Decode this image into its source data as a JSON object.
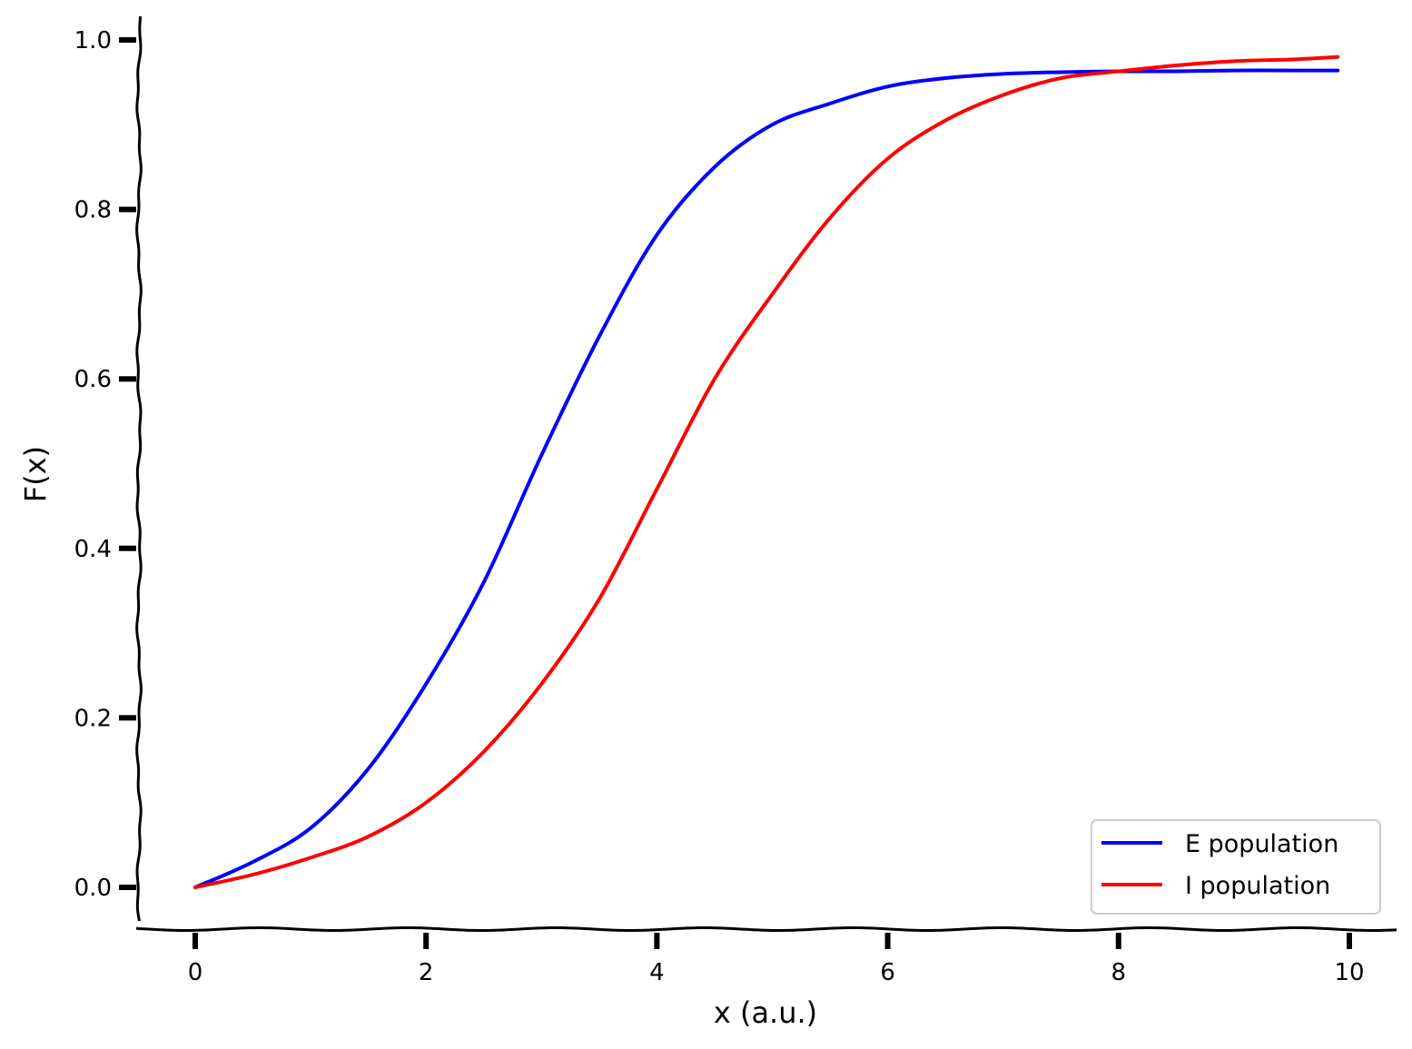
{
  "chart_data": {
    "type": "line",
    "title": "",
    "xlabel": "x (a.u.)",
    "ylabel": "F(x)",
    "xlim": [
      -0.5,
      10.4
    ],
    "ylim": [
      -0.05,
      1.03
    ],
    "xticks": [
      0,
      2,
      4,
      6,
      8,
      10
    ],
    "yticks": [
      0.0,
      0.2,
      0.4,
      0.6,
      0.8,
      1.0
    ],
    "xtick_labels": [
      "0",
      "2",
      "4",
      "6",
      "8",
      "10"
    ],
    "ytick_labels": [
      "0.0",
      "0.2",
      "0.4",
      "0.6",
      "0.8",
      "1.0"
    ],
    "grid": false,
    "legend_position": "bottom-right",
    "x": [
      0,
      0.5,
      1.0,
      1.5,
      2.0,
      2.5,
      3.0,
      3.5,
      4.0,
      4.5,
      5.0,
      5.5,
      6.0,
      6.5,
      7.0,
      7.5,
      8.0,
      8.5,
      9.0,
      9.5,
      9.9
    ],
    "series": [
      {
        "name": "E population",
        "color": "#0000ff",
        "values": [
          0.0,
          0.03,
          0.07,
          0.14,
          0.24,
          0.36,
          0.51,
          0.65,
          0.77,
          0.85,
          0.9,
          0.925,
          0.945,
          0.955,
          0.96,
          0.962,
          0.963,
          0.963,
          0.964,
          0.964,
          0.964
        ]
      },
      {
        "name": "I population",
        "color": "#ff0000",
        "values": [
          0.0,
          0.015,
          0.035,
          0.06,
          0.1,
          0.16,
          0.24,
          0.34,
          0.47,
          0.6,
          0.7,
          0.79,
          0.86,
          0.905,
          0.935,
          0.955,
          0.963,
          0.97,
          0.975,
          0.977,
          0.98
        ]
      }
    ]
  }
}
